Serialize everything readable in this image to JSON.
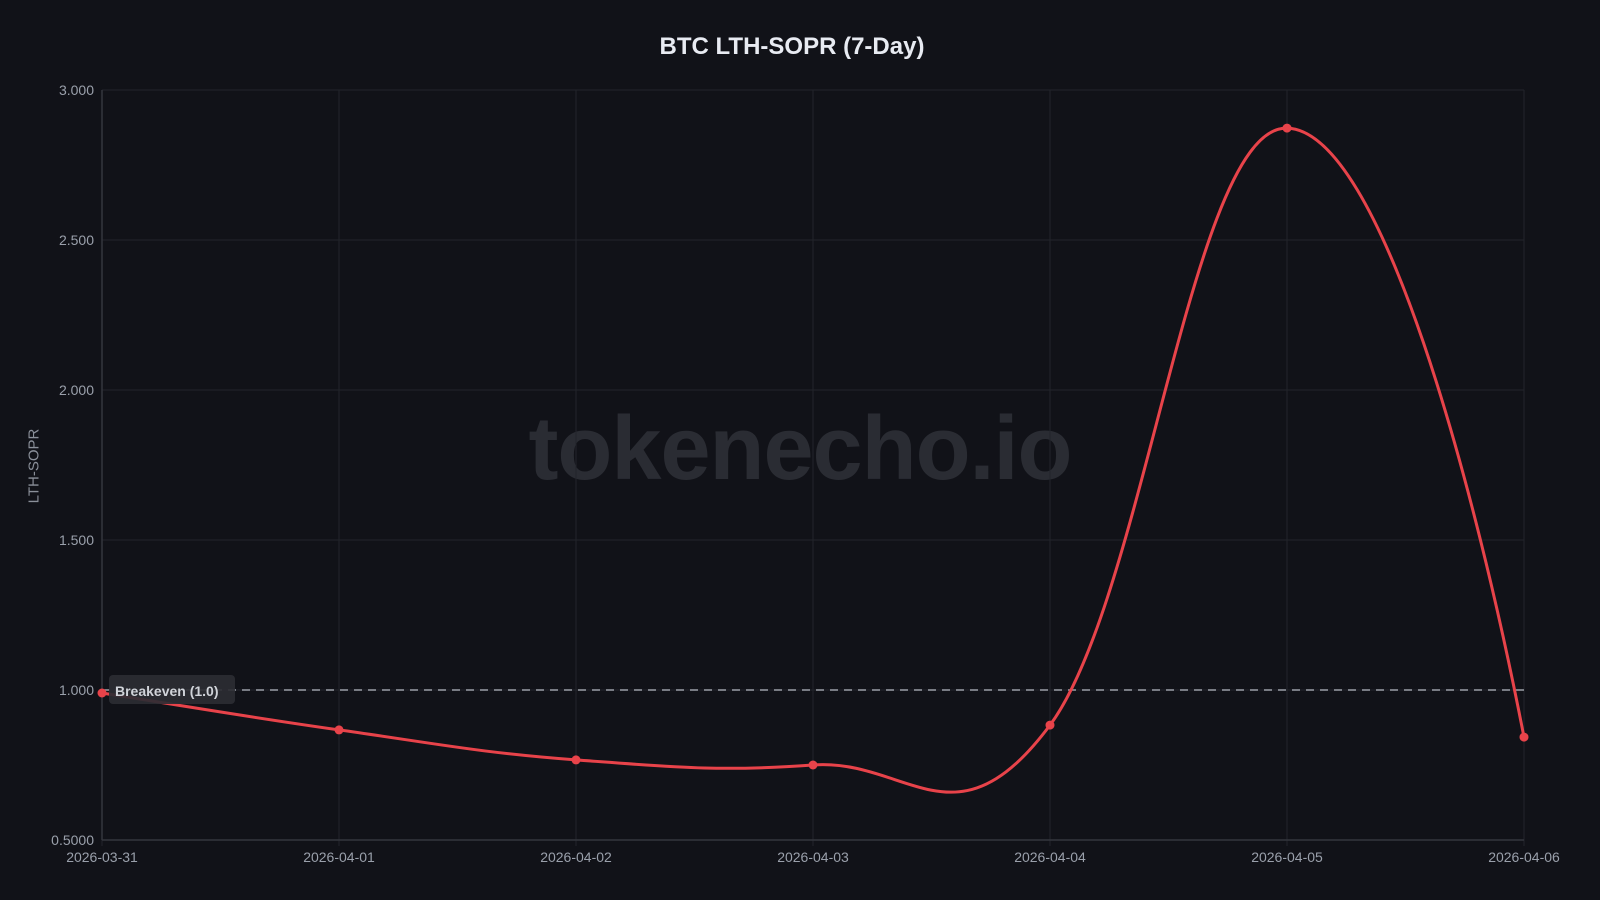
{
  "chart_data": {
    "type": "line",
    "title": "BTC LTH-SOPR (7-Day)",
    "xlabel": "",
    "ylabel": "LTH-SOPR",
    "categories": [
      "2026-03-31",
      "2026-04-01",
      "2026-04-02",
      "2026-04-03",
      "2026-04-04",
      "2026-04-05",
      "2026-04-06"
    ],
    "series": [
      {
        "name": "LTH-SOPR",
        "color": "#e8434a",
        "values": [
          0.99,
          0.867,
          0.767,
          0.75,
          0.883,
          2.873,
          0.843
        ]
      }
    ],
    "ylim": [
      0.5,
      3.0
    ],
    "yticks": [
      "0.5000",
      "1.000",
      "1.500",
      "2.000",
      "2.500",
      "3.000"
    ],
    "reference_line": {
      "value": 1.0,
      "label": "Breakeven (1.0)",
      "style": "dashed"
    },
    "grid": true,
    "legend": "none",
    "watermark": "tokenecho.io"
  },
  "colors": {
    "background": "#111218",
    "line": "#e8434a",
    "grid": "#22242b",
    "text": "#9aa0ab"
  }
}
